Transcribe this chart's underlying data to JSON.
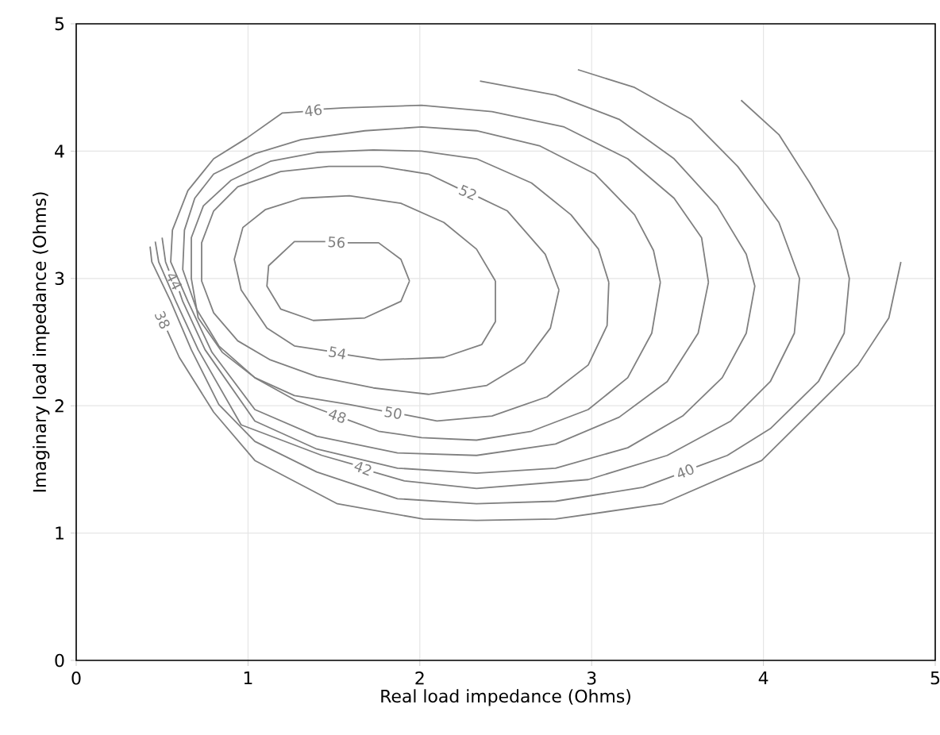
{
  "chart_data": {
    "type": "line",
    "xlabel": "Real load impedance (Ohms)",
    "ylabel": "Imaginary load impedance (Ohms)",
    "xlim": [
      0,
      5
    ],
    "ylim": [
      0,
      5
    ],
    "xticks": [
      0,
      1,
      2,
      3,
      4,
      5
    ],
    "yticks": [
      0,
      1,
      2,
      3,
      4,
      5
    ],
    "grid": true,
    "series": [
      {
        "name": "56",
        "color": "#808080",
        "x": [
          1.94,
          1.89,
          1.76,
          1.58,
          null,
          1.45,
          1.27,
          1.12,
          1.11,
          1.19,
          1.38,
          1.68,
          1.89,
          1.94
        ],
        "values": [
          2.98,
          3.15,
          3.28,
          3.28,
          null,
          3.29,
          3.29,
          3.1,
          2.94,
          2.76,
          2.67,
          2.69,
          2.82,
          2.98
        ]
      },
      {
        "name": "54",
        "color": "#808080",
        "x": [
          2.44,
          2.33,
          2.14,
          1.89,
          1.59,
          1.31,
          1.1,
          0.97,
          0.92,
          0.96,
          1.11,
          1.27,
          1.46,
          null,
          1.58,
          1.77,
          2.14,
          2.36,
          2.44,
          2.44
        ],
        "values": [
          2.98,
          3.23,
          3.44,
          3.59,
          3.65,
          3.63,
          3.54,
          3.4,
          3.15,
          2.91,
          2.61,
          2.47,
          2.43,
          null,
          2.4,
          2.36,
          2.38,
          2.48,
          2.66,
          2.98
        ]
      },
      {
        "name": "52",
        "color": "#808080",
        "x": [
          2.81,
          2.76,
          2.61,
          2.39,
          2.05,
          1.73,
          1.4,
          1.13,
          0.94,
          0.8,
          0.73,
          0.73,
          0.8,
          0.94,
          1.19,
          1.47,
          1.77,
          2.05,
          2.22,
          null,
          2.34,
          2.51,
          2.73,
          2.81
        ],
        "values": [
          2.91,
          2.61,
          2.34,
          2.16,
          2.09,
          2.14,
          2.23,
          2.36,
          2.51,
          2.73,
          2.98,
          3.28,
          3.53,
          3.72,
          3.84,
          3.88,
          3.88,
          3.82,
          3.71,
          null,
          3.64,
          3.53,
          3.19,
          2.91
        ]
      },
      {
        "name": "50",
        "color": "#808080",
        "x": [
          3.1,
          3.09,
          2.98,
          2.74,
          2.42,
          2.1,
          1.91,
          null,
          1.78,
          1.59,
          1.27,
          1.04,
          0.85,
          0.71,
          0.67,
          0.67,
          0.74,
          0.9,
          1.13,
          1.4,
          1.73,
          2.01,
          2.33,
          2.65,
          2.88,
          3.04,
          3.1
        ],
        "values": [
          2.97,
          2.63,
          2.32,
          2.07,
          1.92,
          1.88,
          1.93,
          null,
          1.96,
          2.01,
          2.08,
          2.22,
          2.42,
          2.69,
          3.0,
          3.32,
          3.57,
          3.77,
          3.92,
          3.99,
          4.01,
          4.0,
          3.94,
          3.75,
          3.5,
          3.23,
          2.97
        ]
      },
      {
        "name": "48",
        "color": "#808080",
        "x": [
          3.4,
          3.35,
          3.21,
          2.98,
          2.65,
          2.33,
          2.01,
          1.76,
          1.58,
          null,
          1.46,
          1.28,
          1.04,
          0.83,
          0.7,
          0.62,
          0.63,
          0.69,
          0.8,
          1.04,
          1.31,
          1.68,
          2.01,
          2.33,
          2.7,
          3.02,
          3.25,
          3.36,
          3.4
        ],
        "values": [
          2.97,
          2.57,
          2.22,
          1.97,
          1.8,
          1.73,
          1.75,
          1.8,
          1.89,
          null,
          1.95,
          2.04,
          2.22,
          2.47,
          2.76,
          3.07,
          3.38,
          3.63,
          3.82,
          3.98,
          4.09,
          4.16,
          4.19,
          4.16,
          4.04,
          3.82,
          3.5,
          3.22,
          2.97
        ]
      },
      {
        "name": "46",
        "color": "#808080",
        "x": [
          3.68,
          3.62,
          3.44,
          3.16,
          2.79,
          2.33,
          1.87,
          1.4,
          1.04,
          0.79,
          0.65,
          0.55,
          0.56,
          0.65,
          0.8,
          0.99,
          1.2,
          1.32,
          null,
          1.44,
          1.56,
          2.01,
          2.42,
          2.84,
          3.21,
          3.48,
          3.64,
          3.68
        ],
        "values": [
          2.97,
          2.57,
          2.19,
          1.91,
          1.7,
          1.61,
          1.63,
          1.76,
          1.97,
          2.42,
          2.82,
          3.13,
          3.38,
          3.69,
          3.94,
          4.1,
          4.3,
          4.31,
          null,
          4.33,
          4.34,
          4.36,
          4.31,
          4.19,
          3.94,
          3.63,
          3.32,
          2.97
        ]
      },
      {
        "name": "44",
        "color": "#808080",
        "x": [
          2.35,
          2.79,
          3.16,
          3.48,
          3.73,
          3.9,
          3.95,
          3.9,
          3.76,
          3.53,
          3.21,
          2.79,
          2.33,
          1.87,
          1.4,
          1.04,
          0.75,
          0.62,
          0.6,
          null,
          0.54,
          0.52,
          0.5
        ],
        "values": [
          4.55,
          4.44,
          4.25,
          3.94,
          3.57,
          3.19,
          2.94,
          2.57,
          2.22,
          1.92,
          1.67,
          1.51,
          1.47,
          1.51,
          1.66,
          1.88,
          2.44,
          2.82,
          2.9,
          null,
          3.06,
          3.13,
          3.32
        ]
      },
      {
        "name": "42",
        "color": "#808080",
        "x": [
          2.92,
          3.25,
          3.58,
          3.85,
          4.09,
          4.21,
          4.18,
          4.04,
          3.81,
          3.44,
          2.98,
          2.33,
          1.91,
          1.73,
          null,
          1.61,
          1.43,
          0.96,
          0.71,
          0.58,
          0.48,
          0.46
        ],
        "values": [
          4.64,
          4.5,
          4.25,
          3.88,
          3.44,
          3.0,
          2.57,
          2.19,
          1.88,
          1.61,
          1.42,
          1.35,
          1.41,
          1.48,
          null,
          1.54,
          1.61,
          1.85,
          2.44,
          2.82,
          3.13,
          3.29
        ]
      },
      {
        "name": "40",
        "color": "#808080",
        "x": [
          3.87,
          4.09,
          4.27,
          4.43,
          4.5,
          4.47,
          4.32,
          4.04,
          3.79,
          3.61,
          null,
          3.48,
          3.3,
          2.79,
          2.33,
          1.87,
          1.4,
          1.04,
          0.83,
          0.67,
          0.55,
          0.44,
          0.43
        ],
        "values": [
          4.4,
          4.13,
          3.75,
          3.38,
          3.0,
          2.57,
          2.19,
          1.82,
          1.61,
          1.52,
          null,
          1.45,
          1.36,
          1.25,
          1.23,
          1.27,
          1.48,
          1.72,
          2.01,
          2.44,
          2.82,
          3.13,
          3.25
        ]
      },
      {
        "name": "38",
        "color": "#808080",
        "x": [
          4.8,
          4.73,
          4.55,
          3.99,
          3.41,
          2.79,
          2.33,
          2.02,
          1.52,
          1.04,
          0.8,
          0.6,
          0.53
        ],
        "values": [
          3.13,
          2.69,
          2.32,
          1.57,
          1.23,
          1.11,
          1.1,
          1.11,
          1.23,
          1.57,
          1.95,
          2.38,
          2.59
        ]
      }
    ]
  }
}
